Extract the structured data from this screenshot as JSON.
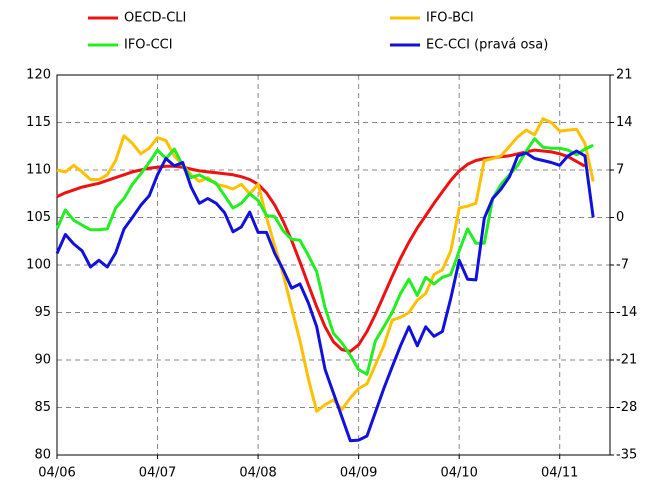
{
  "chart_data": {
    "type": "line",
    "categories": [
      "04/06",
      null,
      null,
      null,
      null,
      null,
      null,
      null,
      null,
      null,
      null,
      null,
      "04/07",
      null,
      null,
      null,
      null,
      null,
      null,
      null,
      null,
      null,
      null,
      null,
      "04/08",
      null,
      null,
      null,
      null,
      null,
      null,
      null,
      null,
      null,
      null,
      null,
      "04/09",
      null,
      null,
      null,
      null,
      null,
      null,
      null,
      null,
      null,
      null,
      null,
      "04/10",
      null,
      null,
      null,
      null,
      null,
      null,
      null,
      null,
      null,
      null,
      null,
      "04/11",
      null,
      null,
      null,
      null,
      null,
      null
    ],
    "series": [
      {
        "name": "OECD-CLI",
        "color": "#ee1111",
        "values": [
          107.2,
          107.6,
          107.9,
          108.2,
          108.4,
          108.6,
          108.9,
          109.2,
          109.5,
          109.8,
          110.0,
          110.2,
          110.3,
          110.4,
          110.4,
          110.3,
          110.1,
          109.9,
          109.8,
          109.7,
          109.6,
          109.5,
          109.3,
          109.0,
          108.5,
          107.6,
          106.3,
          104.6,
          102.6,
          100.3,
          97.9,
          95.6,
          93.5,
          91.9,
          91.1,
          90.9,
          91.6,
          93.0,
          94.8,
          96.8,
          98.8,
          100.7,
          102.4,
          103.9,
          105.2,
          106.5,
          107.7,
          108.9,
          109.9,
          110.6,
          111.0,
          111.2,
          111.3,
          111.4,
          111.5,
          111.7,
          111.9,
          112.1,
          112.0,
          111.9,
          111.7,
          111.4,
          110.9,
          110.4,
          null,
          null,
          null
        ]
      },
      {
        "name": "IFO-BCI",
        "color": "#ffc000",
        "values": [
          110.0,
          109.8,
          110.5,
          109.8,
          109.0,
          109.0,
          109.5,
          111.0,
          113.6,
          112.8,
          111.7,
          112.3,
          113.4,
          113.1,
          111.5,
          110.5,
          109.5,
          108.8,
          109.2,
          108.5,
          108.3,
          108.0,
          108.5,
          107.5,
          108.5,
          105.0,
          102.0,
          99.0,
          95.5,
          92.0,
          88.0,
          84.6,
          85.3,
          85.8,
          84.8,
          86.0,
          87.0,
          87.5,
          89.5,
          91.5,
          94.2,
          94.5,
          95.0,
          96.3,
          97.0,
          99.0,
          99.5,
          101.5,
          106.0,
          106.2,
          106.5,
          111.0,
          111.2,
          111.5,
          112.5,
          113.5,
          114.2,
          113.7,
          115.4,
          115.0,
          114.1,
          114.2,
          114.3,
          112.8,
          108.8,
          null,
          null
        ]
      },
      {
        "name": "IFO-CCI",
        "color": "#22ee22",
        "values": [
          103.8,
          105.8,
          104.7,
          104.2,
          103.7,
          103.7,
          103.8,
          106.0,
          107.0,
          108.5,
          109.6,
          110.8,
          112.1,
          111.2,
          112.2,
          110.5,
          109.2,
          109.5,
          109.0,
          108.6,
          107.3,
          106.0,
          106.5,
          107.5,
          106.8,
          105.2,
          105.1,
          103.6,
          102.7,
          102.6,
          101.0,
          99.3,
          95.5,
          92.8,
          91.8,
          90.5,
          89.0,
          88.5,
          92.0,
          93.5,
          95.0,
          97.0,
          98.5,
          96.8,
          98.7,
          98.0,
          98.7,
          99.0,
          101.5,
          103.8,
          102.3,
          102.3,
          107.0,
          108.5,
          109.5,
          110.5,
          112.0,
          113.3,
          112.4,
          112.3,
          112.3,
          112.1,
          111.6,
          112.2,
          112.6,
          null,
          null
        ]
      },
      {
        "name": "EC-CCI (pravá osa)",
        "color": "#1111dd",
        "axis": "y2",
        "values": [
          -5.3,
          -2.5,
          -3.9,
          -4.9,
          -7.3,
          -6.3,
          -7.3,
          -5.2,
          -1.7,
          0,
          1.8,
          3.2,
          6.3,
          8.7,
          7.6,
          8.1,
          4.5,
          2.1,
          2.8,
          2.1,
          0.7,
          -2.1,
          -1.4,
          0.8,
          -2.2,
          -2.2,
          -5.3,
          -7.7,
          -10.4,
          -9.8,
          -12.6,
          -16.1,
          -22.4,
          -25.9,
          -29.4,
          -32.9,
          -32.8,
          -32.2,
          -28.7,
          -25.2,
          -22,
          -18.9,
          -16.1,
          -18.9,
          -16.1,
          -17.5,
          -16.8,
          -11.9,
          -6.3,
          -9.1,
          -9.2,
          -0.1,
          2.8,
          4.2,
          6.0,
          9.1,
          9.5,
          8.7,
          8.4,
          8.1,
          7.7,
          9.1,
          9.8,
          9.1,
          0,
          null,
          null
        ]
      }
    ],
    "ylim": [
      80,
      120
    ],
    "yticks": [
      80,
      85,
      90,
      95,
      100,
      105,
      110,
      115,
      120
    ],
    "y2lim": [
      -35,
      21
    ],
    "y2ticks": [
      -35,
      -28,
      -21,
      -14,
      -7,
      0,
      7,
      14,
      21
    ],
    "grid": true,
    "legend": "top"
  }
}
